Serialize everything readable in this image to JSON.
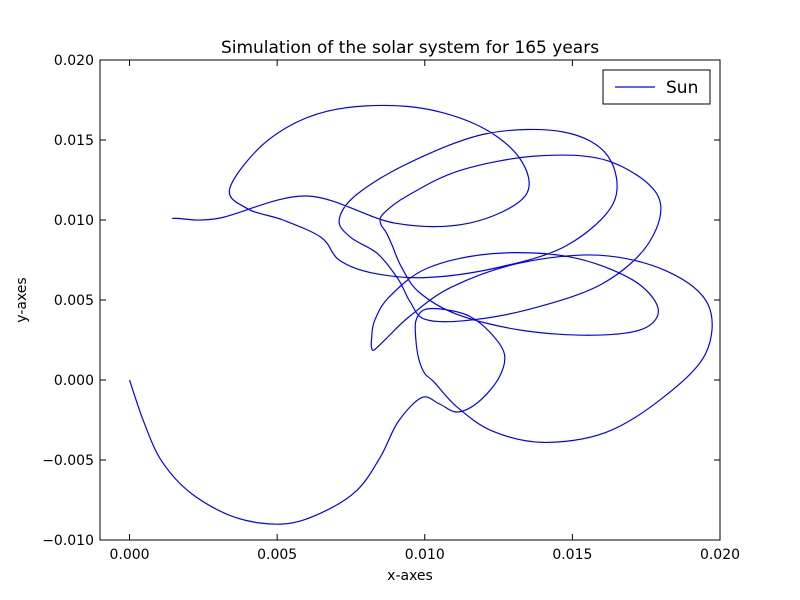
{
  "chart_data": {
    "type": "line",
    "title": "Simulation of the solar system for 165 years",
    "xlabel": "x-axes",
    "ylabel": "y-axes",
    "xlim": [
      -0.001,
      0.02
    ],
    "ylim": [
      -0.01,
      0.02
    ],
    "xticks": [
      0.0,
      0.005,
      0.01,
      0.015,
      0.02
    ],
    "xtick_labels": [
      "0.000",
      "0.005",
      "0.010",
      "0.015",
      "0.020"
    ],
    "yticks": [
      -0.01,
      -0.005,
      0.0,
      0.005,
      0.01,
      0.015,
      0.02
    ],
    "yticks_labels": [
      "−0.010",
      "−0.005",
      "0.000",
      "0.005",
      "0.010",
      "0.015",
      "0.020"
    ],
    "grid": false,
    "legend": {
      "position": "upper right"
    },
    "series": [
      {
        "name": "Sun",
        "color": "#0000ff",
        "x": [
          0.0,
          0.0005,
          0.0011,
          0.0021,
          0.0036,
          0.0052,
          0.0065,
          0.0077,
          0.0085,
          0.0091,
          0.0099,
          0.0105,
          0.0111,
          0.0118,
          0.0125,
          0.0127,
          0.0122,
          0.0115,
          0.0107,
          0.01,
          0.0097,
          0.0097,
          0.0098,
          0.01,
          0.0103,
          0.0111,
          0.0123,
          0.014,
          0.0161,
          0.018,
          0.0195,
          0.0196,
          0.0182,
          0.0159,
          0.0132,
          0.0109,
          0.0095,
          0.0087,
          0.0083,
          0.0082,
          0.0082,
          0.0083,
          0.0088,
          0.0101,
          0.0123,
          0.0149,
          0.017,
          0.0179,
          0.0174,
          0.0157,
          0.0133,
          0.0111,
          0.0098,
          0.0092,
          0.0089,
          0.0087,
          0.0085,
          0.0086,
          0.0094,
          0.0112,
          0.0138,
          0.0162,
          0.0179,
          0.0176,
          0.016,
          0.0135,
          0.0113,
          0.01,
          0.0095,
          0.0091,
          0.0084,
          0.0075,
          0.0071,
          0.0077,
          0.0095,
          0.0121,
          0.0147,
          0.0162,
          0.0164,
          0.0148,
          0.0124,
          0.01,
          0.0082,
          0.0071,
          0.0065,
          0.0052,
          0.004,
          0.0034,
          0.0047,
          0.0067,
          0.0094,
          0.0117,
          0.0132,
          0.0134,
          0.0115,
          0.009,
          0.006,
          0.003,
          0.0016,
          0.0015
        ],
        "y": [
          0.0,
          -0.0027,
          -0.0051,
          -0.0071,
          -0.0086,
          -0.009,
          -0.0083,
          -0.0069,
          -0.0048,
          -0.0026,
          -0.0011,
          -0.0015,
          -0.002,
          -0.0014,
          0.0001,
          0.0016,
          0.003,
          0.004,
          0.0044,
          0.0044,
          0.0037,
          0.0025,
          0.0013,
          0.0004,
          -0.0001,
          -0.0017,
          -0.0032,
          -0.0039,
          -0.0033,
          -0.0012,
          0.0016,
          0.0047,
          0.0068,
          0.0078,
          0.0073,
          0.0058,
          0.004,
          0.0026,
          0.0019,
          0.002,
          0.0026,
          0.0037,
          0.0052,
          0.007,
          0.0079,
          0.0077,
          0.0063,
          0.0045,
          0.0032,
          0.0028,
          0.0031,
          0.0041,
          0.0055,
          0.0071,
          0.0084,
          0.0092,
          0.0098,
          0.0104,
          0.0115,
          0.0131,
          0.014,
          0.0137,
          0.0115,
          0.0086,
          0.006,
          0.0044,
          0.0037,
          0.0038,
          0.0049,
          0.0063,
          0.0079,
          0.0089,
          0.01,
          0.0116,
          0.0136,
          0.0154,
          0.0155,
          0.014,
          0.0111,
          0.0084,
          0.007,
          0.0064,
          0.0067,
          0.0075,
          0.0089,
          0.01,
          0.0107,
          0.012,
          0.015,
          0.0168,
          0.0171,
          0.016,
          0.0139,
          0.0115,
          0.0098,
          0.0098,
          0.0115,
          0.0101,
          0.0101,
          0.0101
        ]
      }
    ]
  }
}
